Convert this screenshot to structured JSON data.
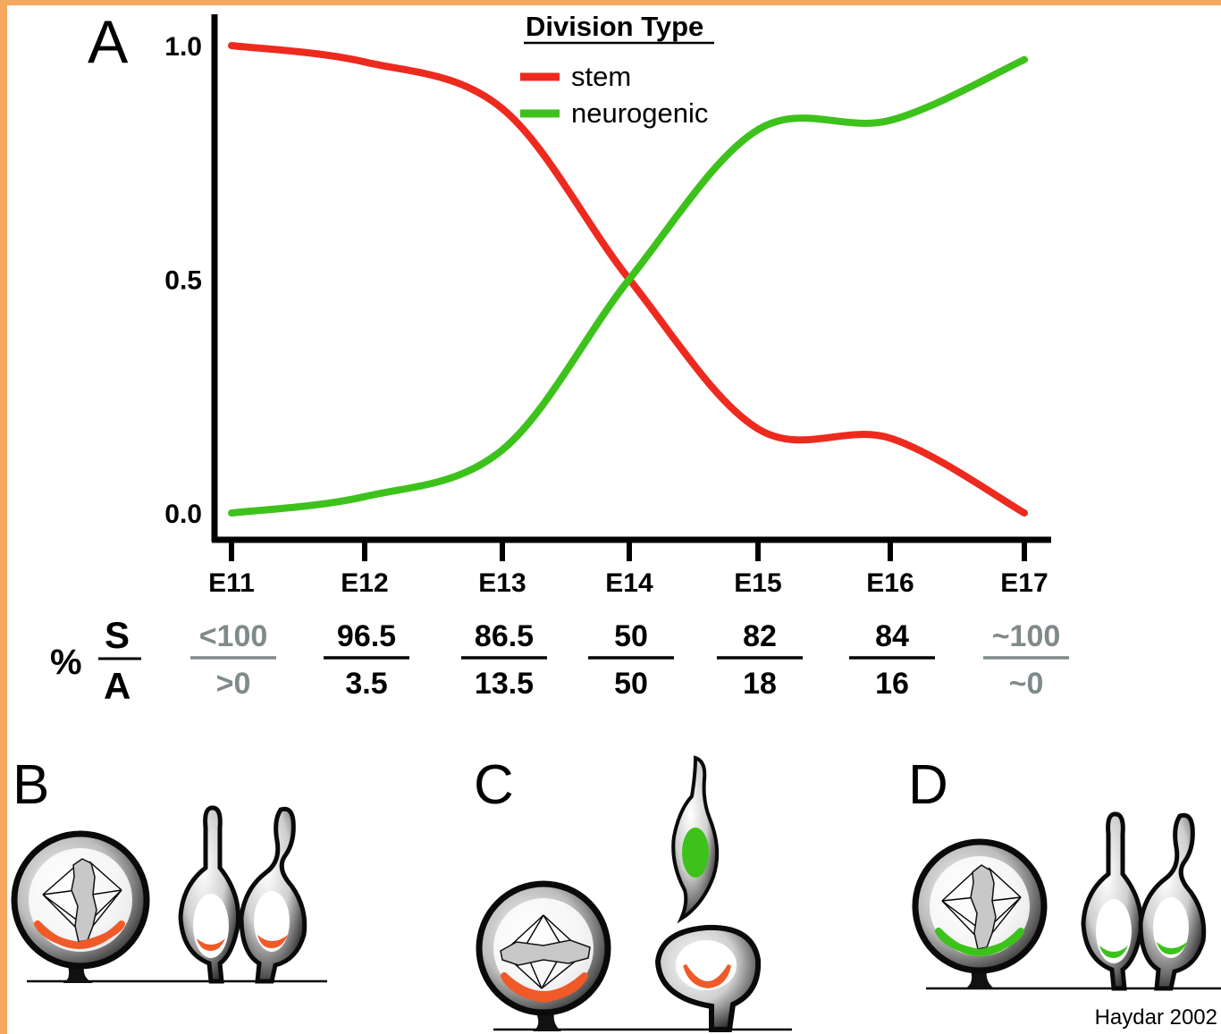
{
  "panels": {
    "a": "A",
    "b": "B",
    "c": "C",
    "d": "D"
  },
  "chart_data": {
    "type": "line",
    "x": [
      "E11",
      "E12",
      "E13",
      "E14",
      "E15",
      "E16",
      "E17"
    ],
    "series": [
      {
        "name": "stem",
        "color": "#ee2a1f",
        "values": [
          1.0,
          0.965,
          0.865,
          0.5,
          0.18,
          0.16,
          0.0
        ]
      },
      {
        "name": "neurogenic",
        "color": "#3dc21b",
        "values": [
          0.0,
          0.035,
          0.135,
          0.5,
          0.82,
          0.84,
          0.97
        ]
      }
    ],
    "yticks": [
      "1.0",
      "0.5",
      "0.0"
    ],
    "ylim": [
      0,
      1
    ],
    "legend": {
      "title": "Division Type",
      "position": "top-center"
    }
  },
  "ratio": {
    "prefix": "%",
    "numerator_label": "S",
    "denominator_label": "A",
    "pairs": [
      {
        "top": "<100",
        "bottom": ">0",
        "muted": true
      },
      {
        "top": "96.5",
        "bottom": "3.5",
        "muted": false
      },
      {
        "top": "86.5",
        "bottom": "13.5",
        "muted": false
      },
      {
        "top": "50",
        "bottom": "50",
        "muted": false
      },
      {
        "top": "82",
        "bottom": "18",
        "muted": false
      },
      {
        "top": "84",
        "bottom": "16",
        "muted": false
      },
      {
        "top": "~100",
        "bottom": "~0",
        "muted": true
      }
    ]
  },
  "credit": "Haydar 2002",
  "colors": {
    "stem": "#ee2a1f",
    "neurogenic": "#3dc21b",
    "orange_crescent": "#f05a28",
    "gray_text": "#7f8a8a"
  }
}
